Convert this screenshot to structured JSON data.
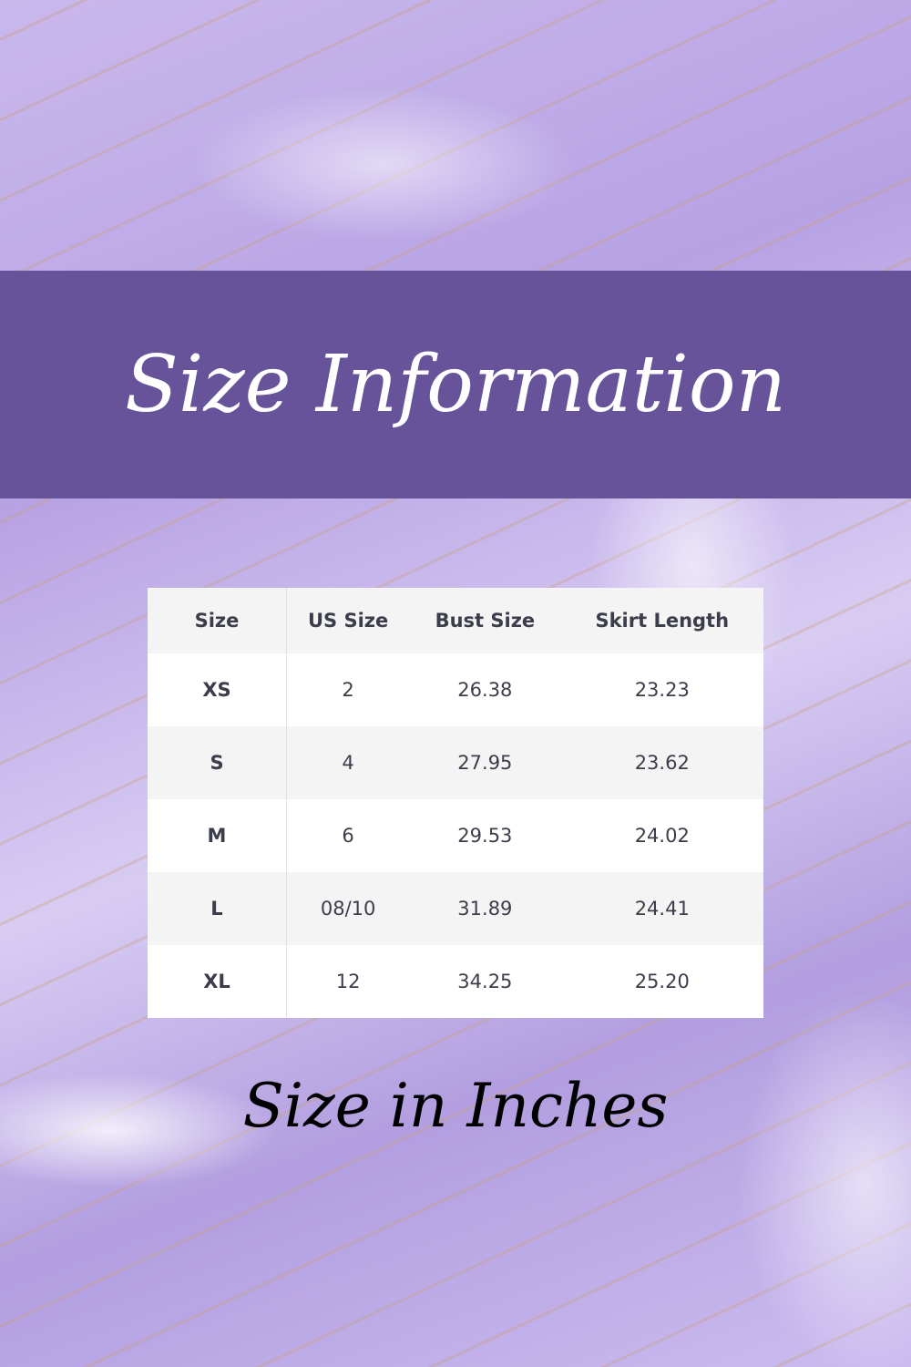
{
  "title": "Size Information",
  "subtitle": "Size in Inches",
  "colors": {
    "banner": "#66539a",
    "text": "#3b3d4a"
  },
  "table": {
    "headers": [
      "Size",
      "US Size",
      "Bust Size",
      "Skirt Length"
    ],
    "rows": [
      [
        "XS",
        "2",
        "26.38",
        "23.23"
      ],
      [
        "S",
        "4",
        "27.95",
        "23.62"
      ],
      [
        "M",
        "6",
        "29.53",
        "24.02"
      ],
      [
        "L",
        "08/10",
        "31.89",
        "24.41"
      ],
      [
        "XL",
        "12",
        "34.25",
        "25.20"
      ]
    ]
  }
}
